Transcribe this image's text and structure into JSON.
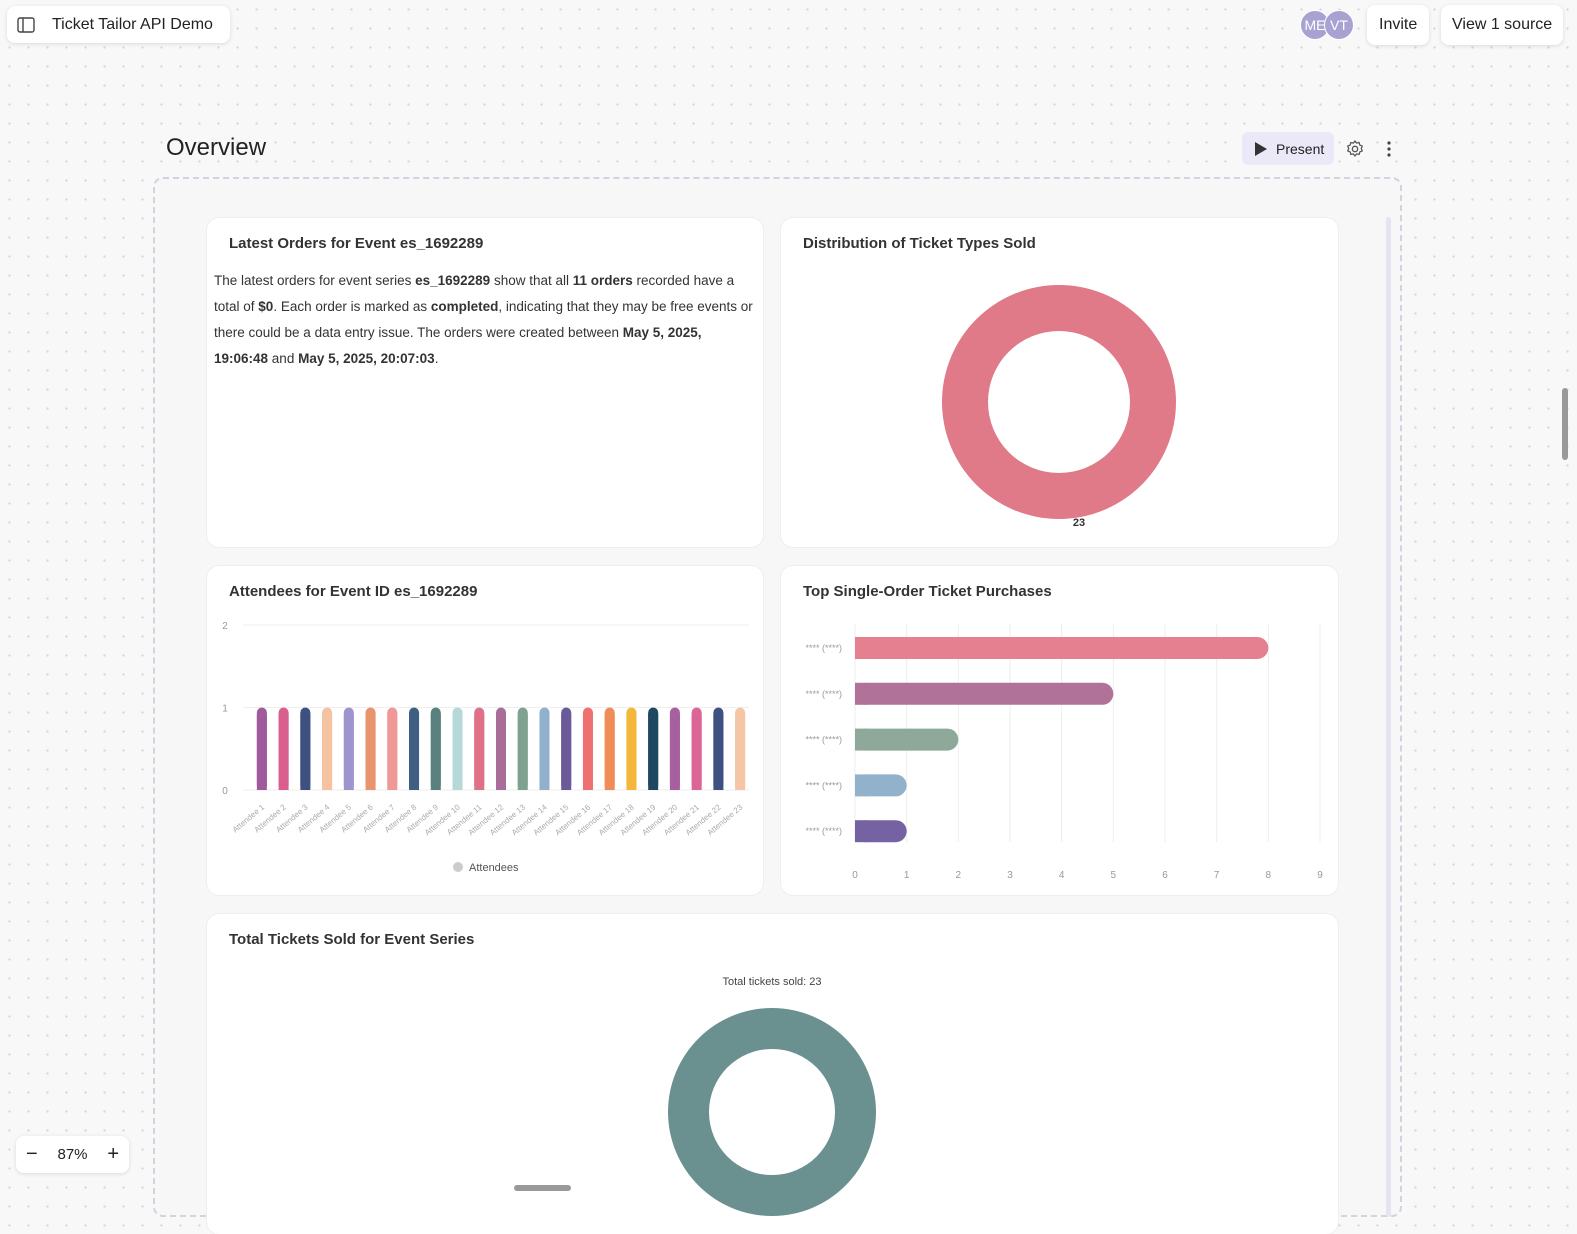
{
  "header": {
    "app_title": "Ticket Tailor API Demo",
    "avatars": [
      "ME",
      "VT"
    ],
    "invite": "Invite",
    "view_source": "View 1 source"
  },
  "page": {
    "title": "Overview",
    "present": "Present"
  },
  "zoom": {
    "level": "87%"
  },
  "cards": {
    "orders": {
      "title": "Latest Orders for Event es_1692289",
      "text": [
        {
          "t": "The latest orders for event series "
        },
        {
          "t": "es_1692289",
          "b": true
        },
        {
          "t": " show that all "
        },
        {
          "t": "11 orders",
          "b": true
        },
        {
          "t": " recorded have a total of "
        },
        {
          "t": "$0",
          "b": true
        },
        {
          "t": ". Each order is marked as "
        },
        {
          "t": "completed",
          "b": true
        },
        {
          "t": ", indicating that they may be free events or there could be a data entry issue. The orders were created between "
        },
        {
          "t": "May 5, 2025, 19:06:48",
          "b": true
        },
        {
          "t": " and "
        },
        {
          "t": "May 5, 2025, 20:07:03",
          "b": true
        },
        {
          "t": "."
        }
      ]
    },
    "distribution": {
      "title": "Distribution of Ticket Types Sold"
    },
    "attendees": {
      "title": "Attendees for Event ID es_1692289"
    },
    "top": {
      "title": "Top Single-Order Ticket Purchases"
    },
    "total": {
      "title": "Total Tickets Sold for Event Series"
    }
  },
  "chart_data": [
    {
      "type": "pie",
      "donut": true,
      "values": [
        23
      ],
      "data_labels": [
        "23"
      ],
      "colors": [
        "#e07a88"
      ]
    },
    {
      "type": "bar",
      "categories": [
        "Attendee 1",
        "Attendee 2",
        "Attendee 3",
        "Attendee 4",
        "Attendee 5",
        "Attendee 6",
        "Attendee 7",
        "Attendee 8",
        "Attendee 9",
        "Attendee 10",
        "Attendee 11",
        "Attendee 12",
        "Attendee 13",
        "Attendee 14",
        "Attendee 15",
        "Attendee 16",
        "Attendee 17",
        "Attendee 18",
        "Attendee 19",
        "Attendee 20",
        "Attendee 21",
        "Attendee 22",
        "Attendee 23"
      ],
      "series": [
        {
          "name": "Attendees",
          "values": [
            1,
            1,
            1,
            1,
            1,
            1,
            1,
            1,
            1,
            1,
            1,
            1,
            1,
            1,
            1,
            1,
            1,
            1,
            1,
            1,
            1,
            1,
            1
          ]
        }
      ],
      "ylim": [
        0,
        2
      ],
      "yticks": [
        "0",
        "1",
        "2"
      ],
      "legend": "bottom",
      "grid": true,
      "colors": [
        "#a05a9c",
        "#d95f8f",
        "#3d5080",
        "#f5c2a2",
        "#9e95cf",
        "#e8946c",
        "#f09898",
        "#3e5f82",
        "#5a8080",
        "#b6d8d8",
        "#e07088",
        "#a86e98",
        "#80a090",
        "#90b0cc",
        "#6a5a98",
        "#ee7070",
        "#f08c58",
        "#f5b73a",
        "#1e4860",
        "#a660a0",
        "#dc6496",
        "#3e5282",
        "#f5c6a6"
      ]
    },
    {
      "type": "bar",
      "orientation": "horizontal",
      "categories": [
        "**** (****)",
        "**** (****)",
        "**** (****)",
        "**** (****)",
        "**** (****)"
      ],
      "values": [
        8,
        5,
        2,
        1,
        1
      ],
      "xlim": [
        0,
        9
      ],
      "xticks": [
        "0",
        "1",
        "2",
        "3",
        "4",
        "5",
        "6",
        "7",
        "8",
        "9"
      ],
      "grid": true,
      "colors": [
        "#e48090",
        "#b07298",
        "#8ea89a",
        "#92b2cc",
        "#7462a2"
      ]
    },
    {
      "type": "pie",
      "donut": true,
      "title": "Total tickets sold: 23",
      "values": [
        23
      ],
      "colors": [
        "#6a9090"
      ]
    }
  ]
}
